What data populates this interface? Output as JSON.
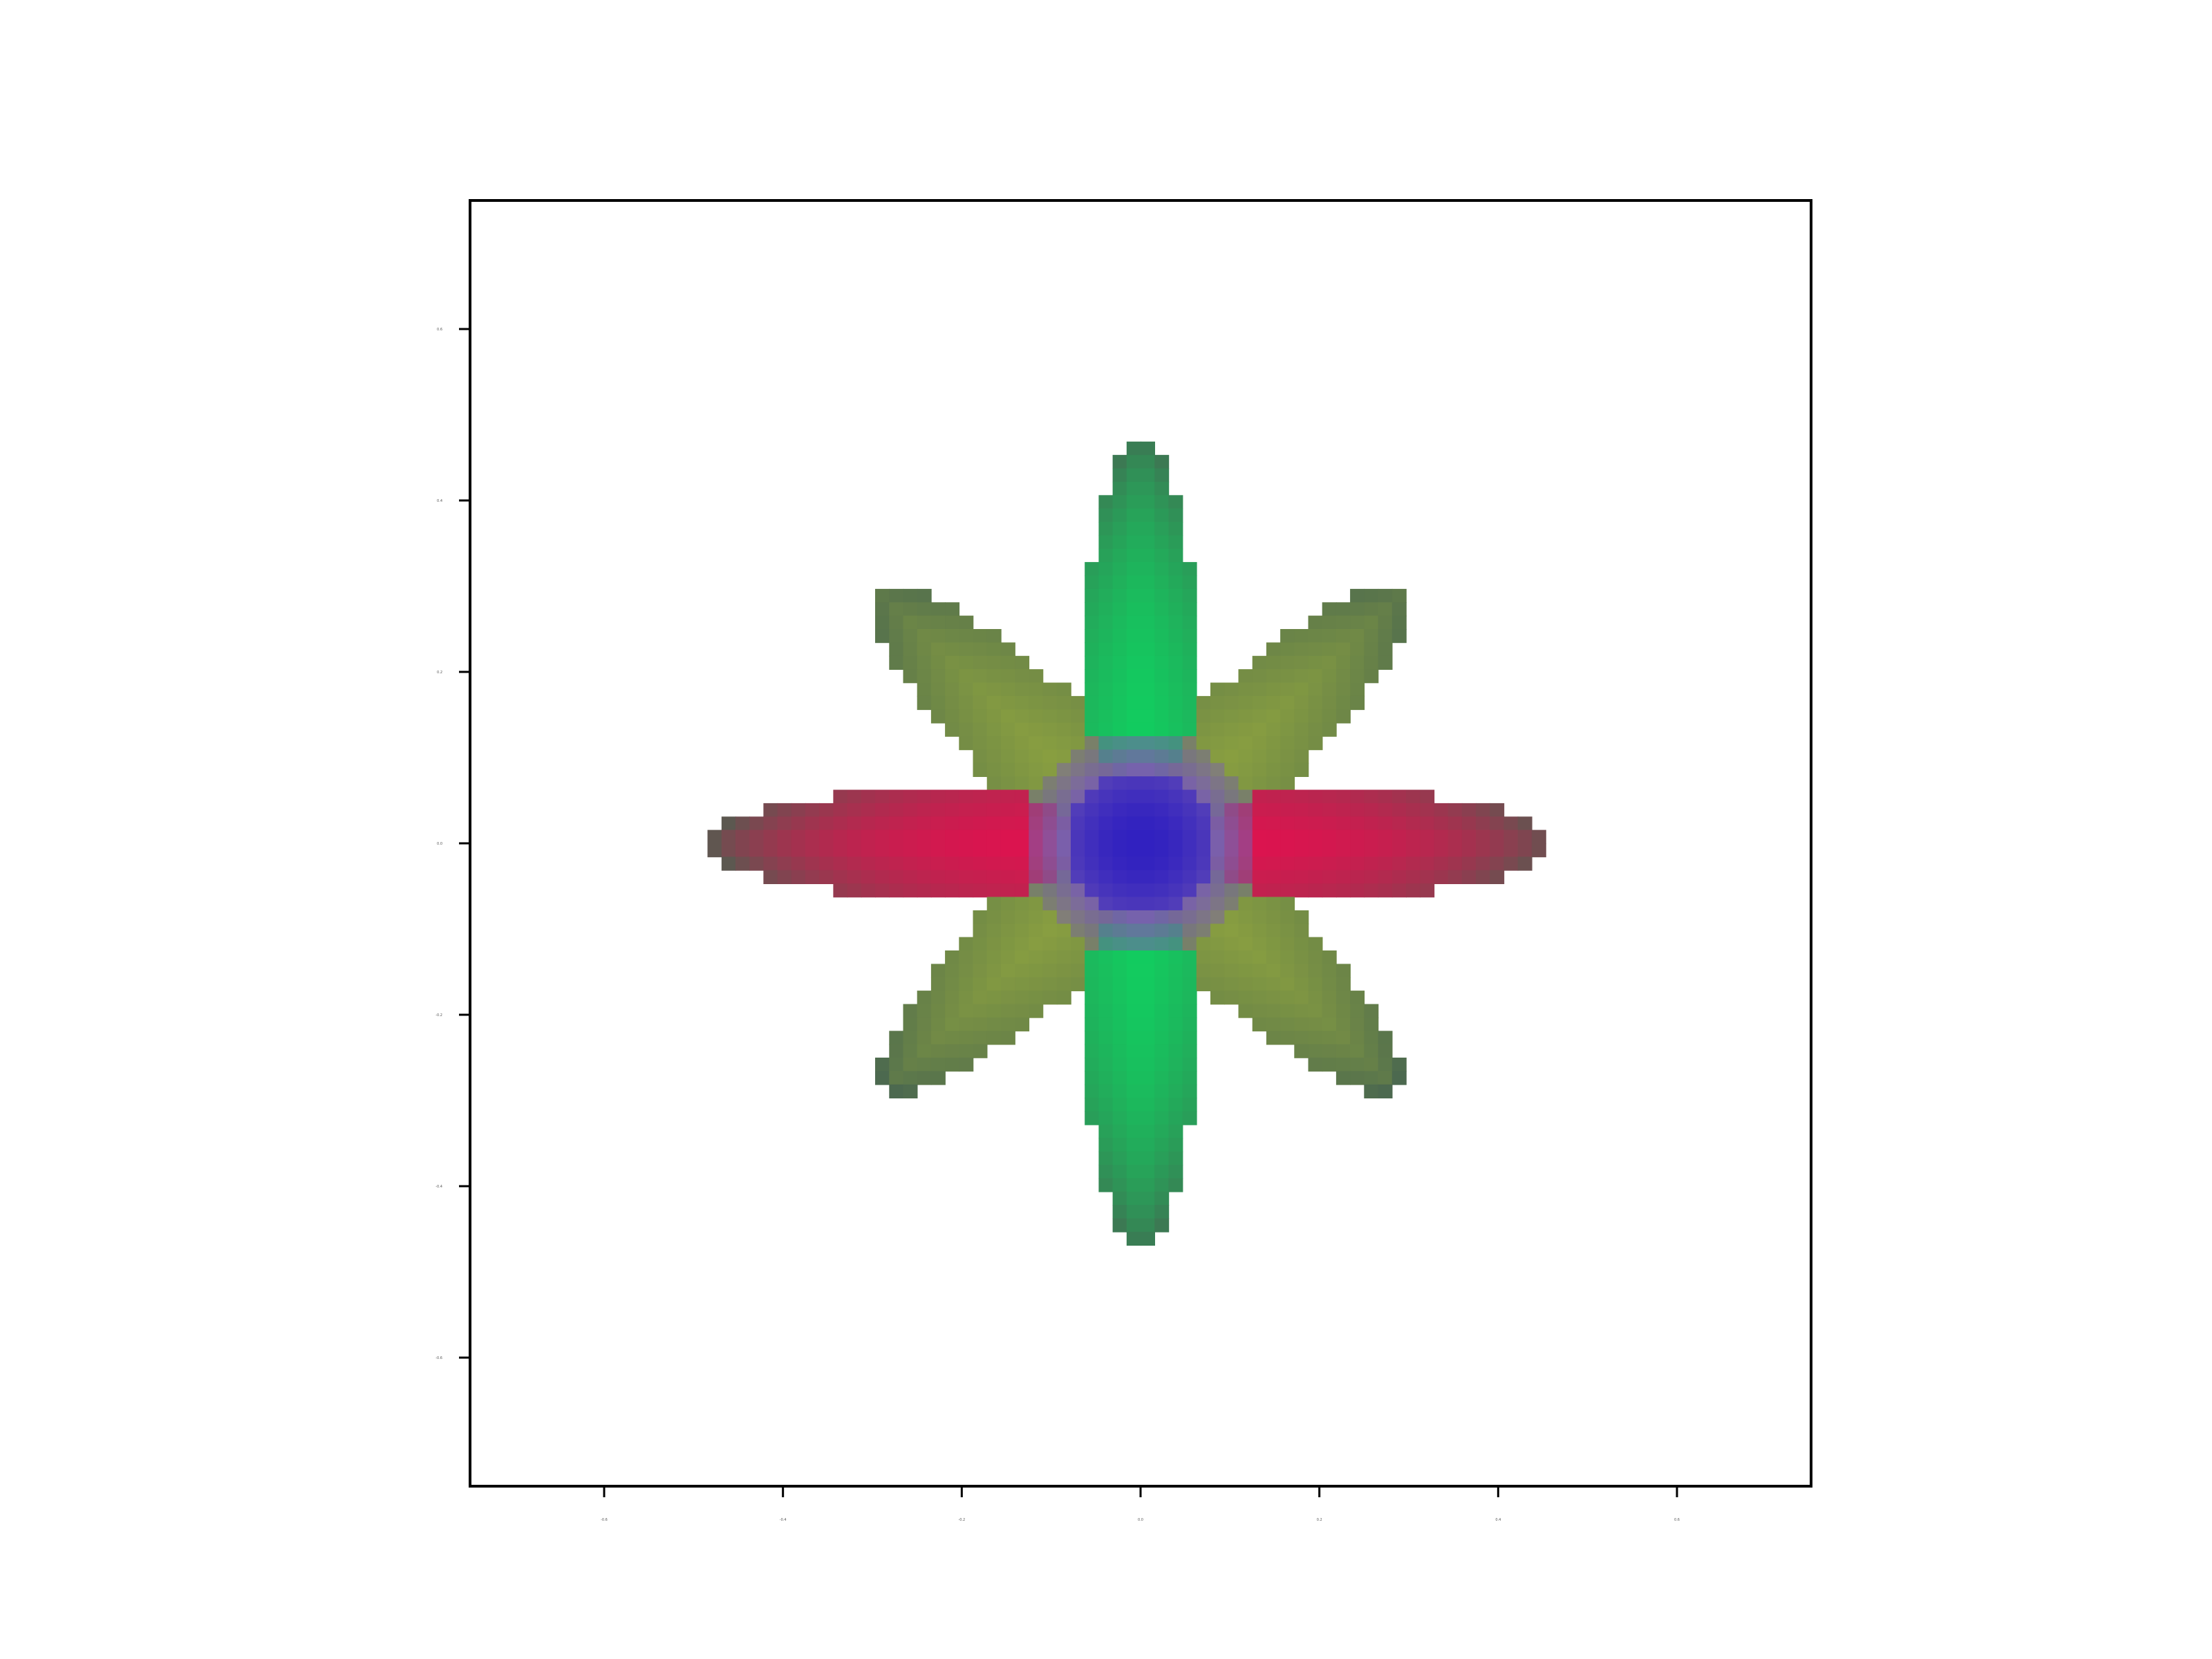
{
  "chart_data": {
    "type": "heatmap",
    "description_of_content": "",
    "title": "",
    "xlabel": "",
    "ylabel": "",
    "xlim": [
      -0.75,
      0.75
    ],
    "ylim": [
      -0.75,
      0.75
    ],
    "x_ticks": [
      "-0.6",
      "-0.4",
      "-0.2",
      "0.0",
      "0.2",
      "0.4",
      "0.6"
    ],
    "y_ticks": [
      "-0.6",
      "-0.4",
      "-0.2",
      "0.0",
      "0.2",
      "0.4",
      "0.6"
    ],
    "grid": false,
    "grid_resolution": 96,
    "shape": "eight-petal-star",
    "petals": [
      {
        "angle_deg": 0,
        "length": 0.46,
        "color": "#e2104f"
      },
      {
        "angle_deg": 180,
        "length": 0.48,
        "color": "#e2104f"
      },
      {
        "angle_deg": 90,
        "length": 0.47,
        "color": "#10d060"
      },
      {
        "angle_deg": 270,
        "length": 0.47,
        "color": "#10d060"
      },
      {
        "angle_deg": 45,
        "length": 0.42,
        "color": "#8aa040"
      },
      {
        "angle_deg": 135,
        "length": 0.42,
        "color": "#8aa040"
      },
      {
        "angle_deg": 225,
        "length": 0.4,
        "color": "#8aa040"
      },
      {
        "angle_deg": 315,
        "length": 0.4,
        "color": "#8aa040"
      }
    ],
    "center_color": "#3020c0",
    "center_ring_color": "#7a60b0"
  }
}
